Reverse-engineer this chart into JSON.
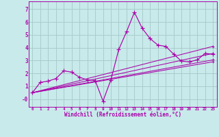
{
  "xlabel": "Windchill (Refroidissement éolien,°C)",
  "background_color": "#c8eaea",
  "grid_color": "#aacccc",
  "line_color": "#aa00aa",
  "spine_color": "#888888",
  "xlim": [
    -0.5,
    23.5
  ],
  "ylim": [
    -0.6,
    7.6
  ],
  "xticks": [
    0,
    1,
    2,
    3,
    4,
    5,
    6,
    7,
    8,
    9,
    10,
    11,
    12,
    13,
    14,
    15,
    16,
    17,
    18,
    19,
    20,
    21,
    22,
    23
  ],
  "yticks": [
    0,
    1,
    2,
    3,
    4,
    5,
    6,
    7
  ],
  "ytick_labels": [
    "-0",
    "1",
    "2",
    "3",
    "4",
    "5",
    "6",
    "7"
  ],
  "main_line": {
    "x": [
      0,
      1,
      2,
      3,
      4,
      5,
      6,
      7,
      8,
      9,
      10,
      11,
      12,
      13,
      14,
      15,
      16,
      17,
      18,
      19,
      20,
      21,
      22,
      23
    ],
    "y": [
      0.5,
      1.3,
      1.4,
      1.6,
      2.2,
      2.1,
      1.7,
      1.5,
      1.45,
      -0.15,
      1.5,
      3.85,
      5.25,
      6.75,
      5.5,
      4.7,
      4.2,
      4.1,
      3.5,
      2.95,
      2.9,
      3.05,
      3.55,
      3.5
    ]
  },
  "trend_lines": [
    {
      "x": [
        0,
        23
      ],
      "y": [
        0.5,
        3.55
      ]
    },
    {
      "x": [
        0,
        23
      ],
      "y": [
        0.5,
        3.05
      ]
    },
    {
      "x": [
        0,
        23
      ],
      "y": [
        0.5,
        2.9
      ]
    },
    {
      "x": [
        0,
        23
      ],
      "y": [
        0.5,
        4.1
      ]
    }
  ]
}
